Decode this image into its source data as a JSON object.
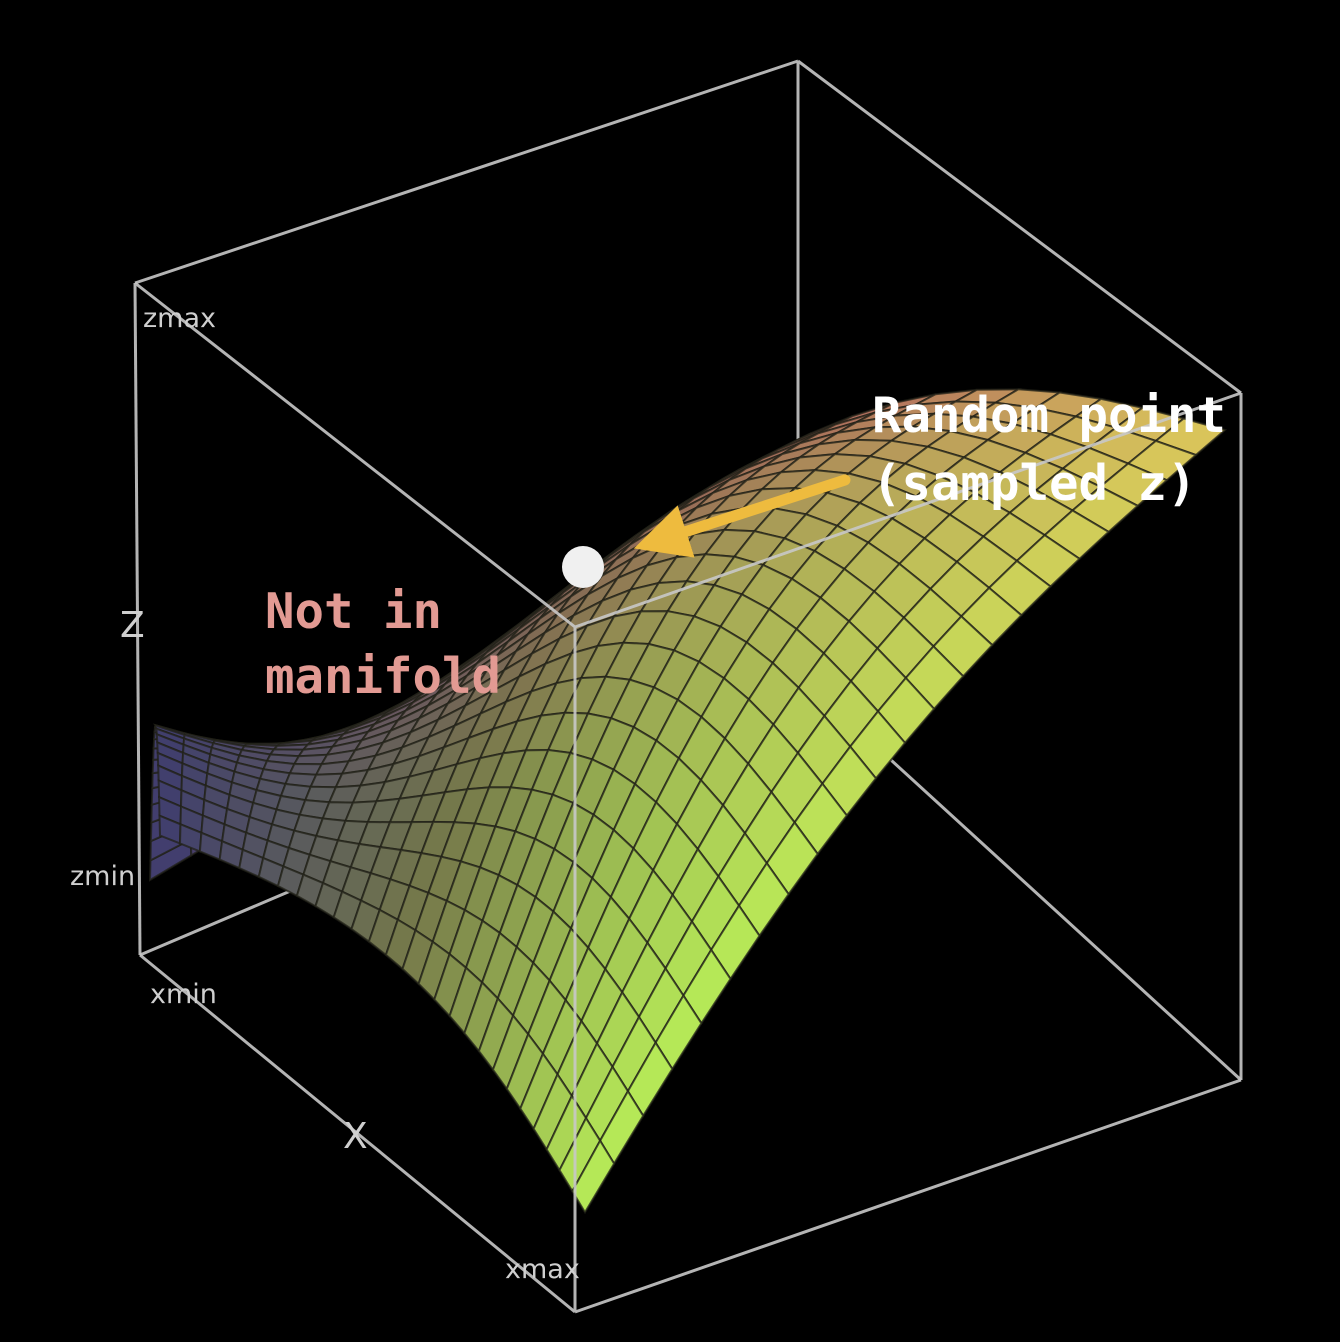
{
  "axes": {
    "z_label": "Z",
    "x_label": "X",
    "zmax_label": "zmax",
    "zmin_label": "zmin",
    "xmin_label": "xmin",
    "xmax_label": "xmax"
  },
  "annotations": {
    "random_point_line1": "Random point",
    "random_point_line2": "(sampled z)",
    "not_in_manifold_line1": "Not in",
    "not_in_manifold_line2": "manifold"
  },
  "colors": {
    "background": "#000000",
    "box_edges": "#c8c8c8",
    "arrow": "#eebb3e",
    "annotation_text": "#ffffff",
    "not_in_manifold_text": "#e29a93",
    "point": "#f0f0f0",
    "surface_low": "#3f3d6e",
    "surface_mid": "#767a4a",
    "surface_high": "#b8ec58",
    "surface_top": "#a85b5f"
  }
}
